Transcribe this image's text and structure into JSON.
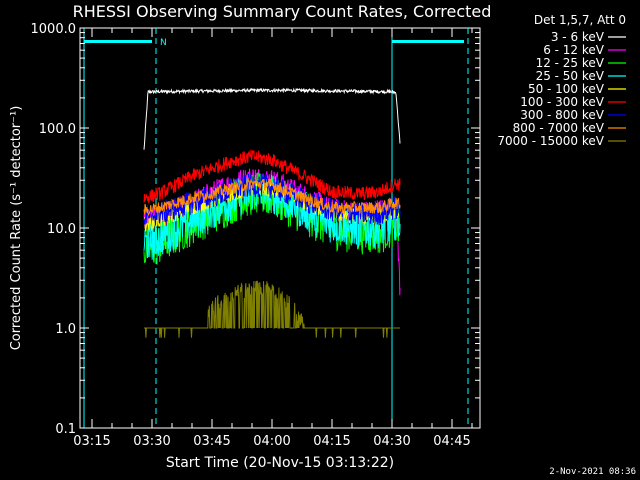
{
  "chart_data": {
    "type": "line",
    "title": "RHESSI Observing Summary Count Rates, Corrected",
    "xlabel": "Start Time (20-Nov-15 03:13:22)",
    "ylabel": "Corrected Count Rate (s⁻¹ detector⁻¹)",
    "yscale": "log",
    "ylim": [
      0.1,
      1000
    ],
    "xlim": [
      "03:12",
      "04:52"
    ],
    "x_ticks": [
      "03:15",
      "03:30",
      "03:45",
      "04:00",
      "04:15",
      "04:30",
      "04:45"
    ],
    "y_ticks": [
      "0.1",
      "1.0",
      "10.0",
      "100.0",
      "1000.0"
    ],
    "legend_title": "Det 1,5,7, Att 0",
    "legend_position": "right",
    "series": [
      {
        "name": "3 - 6 keV",
        "color": "#ffffff",
        "x": [
          "03:28",
          "03:29",
          "03:35",
          "03:45",
          "03:55",
          "04:05",
          "04:15",
          "04:25",
          "04:30",
          "04:31",
          "04:32"
        ],
        "values": [
          60,
          230,
          232,
          235,
          238,
          238,
          235,
          232,
          230,
          225,
          70
        ]
      },
      {
        "name": "6 - 12 keV",
        "color": "#ff00ff",
        "x": [
          "03:28",
          "03:32",
          "03:40",
          "03:50",
          "03:55",
          "04:00",
          "04:08",
          "04:15",
          "04:22",
          "04:27",
          "04:31",
          "04:32"
        ],
        "values": [
          12,
          13,
          18,
          28,
          32,
          30,
          21,
          15,
          14,
          15,
          16,
          2.5
        ]
      },
      {
        "name": "12 - 25 keV",
        "color": "#00ff00",
        "x": [
          "03:28",
          "03:32",
          "03:40",
          "03:50",
          "03:55",
          "04:00",
          "04:08",
          "04:15",
          "04:22",
          "04:27",
          "04:31",
          "04:32"
        ],
        "values": [
          6,
          7,
          11,
          18,
          22,
          21,
          14,
          10,
          9,
          9,
          11,
          10
        ]
      },
      {
        "name": "25 - 50 keV",
        "color": "#00ffff",
        "x": [
          "03:28",
          "03:32",
          "03:40",
          "03:50",
          "03:55",
          "04:00",
          "04:08",
          "04:15",
          "04:22",
          "04:27",
          "04:31",
          "04:32"
        ],
        "values": [
          7,
          8,
          12,
          19,
          23,
          22,
          15,
          11,
          10,
          10,
          12,
          11
        ]
      },
      {
        "name": "50 - 100 keV",
        "color": "#ffff00",
        "x": [
          "03:28",
          "03:32",
          "03:40",
          "03:50",
          "03:55",
          "04:00",
          "04:08",
          "04:15",
          "04:22",
          "04:27",
          "04:31",
          "04:32"
        ],
        "values": [
          11,
          12,
          16,
          22,
          25,
          24,
          18,
          14,
          13,
          13,
          15,
          14
        ]
      },
      {
        "name": "100 - 300 keV",
        "color": "#ff0000",
        "x": [
          "03:28",
          "03:32",
          "03:40",
          "03:50",
          "03:55",
          "04:00",
          "04:08",
          "04:15",
          "04:22",
          "04:27",
          "04:31",
          "04:32"
        ],
        "values": [
          20,
          22,
          33,
          47,
          52,
          48,
          33,
          23,
          22,
          23,
          28,
          27
        ]
      },
      {
        "name": "300 - 800 keV",
        "color": "#0000ff",
        "x": [
          "03:28",
          "03:32",
          "03:40",
          "03:50",
          "03:55",
          "04:00",
          "04:08",
          "04:15",
          "04:22",
          "04:27",
          "04:31",
          "04:32"
        ],
        "values": [
          13,
          14,
          18,
          24,
          27,
          26,
          19,
          15,
          14,
          14,
          16,
          15
        ]
      },
      {
        "name": "800 - 7000 keV",
        "color": "#ff8c00",
        "x": [
          "03:28",
          "03:32",
          "03:40",
          "03:50",
          "03:55",
          "04:00",
          "04:08",
          "04:15",
          "04:22",
          "04:27",
          "04:31",
          "04:32"
        ],
        "values": [
          15,
          16,
          20,
          25,
          28,
          27,
          20,
          16,
          16,
          16,
          18,
          17
        ]
      },
      {
        "name": "7000 - 15000 keV",
        "color": "#808000",
        "x": [
          "03:28",
          "03:35",
          "03:42",
          "03:45",
          "03:50",
          "03:55",
          "04:00",
          "04:05",
          "04:10",
          "04:20",
          "04:30",
          "04:31",
          "04:32"
        ],
        "values": [
          1.0,
          1.0,
          1.0,
          2.0,
          2.6,
          3.0,
          3.0,
          2.0,
          1.0,
          1.0,
          1.0,
          1.0,
          1.0
        ]
      }
    ],
    "orbit_bars": [
      {
        "label": "N",
        "color": "#00ffff"
      }
    ]
  },
  "footer": {
    "timestamp": "2-Nov-2021 08:36"
  }
}
